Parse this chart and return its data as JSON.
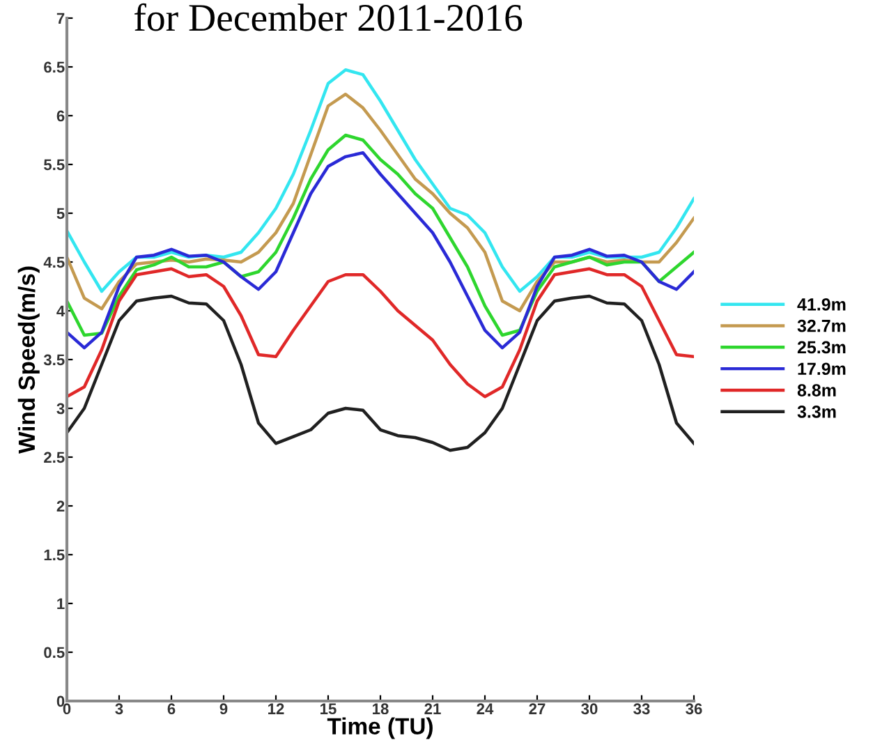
{
  "chart_data": {
    "type": "line",
    "title": "for December 2011-2016",
    "xlabel": "Time (TU)",
    "ylabel": "Wind Speed(m/s)",
    "x": [
      0,
      1,
      2,
      3,
      4,
      5,
      6,
      7,
      8,
      9,
      10,
      11,
      12,
      13,
      14,
      15,
      16,
      17,
      18,
      19,
      20,
      21,
      22,
      23,
      24,
      25,
      26,
      27,
      28,
      29,
      30,
      31,
      32,
      33,
      34,
      35,
      36
    ],
    "xlim": [
      0,
      36
    ],
    "xticks": [
      0,
      3,
      6,
      9,
      12,
      15,
      18,
      21,
      24,
      27,
      30,
      33,
      36
    ],
    "ylim": [
      0,
      7
    ],
    "yticks": [
      0,
      0.5,
      1,
      1.5,
      2,
      2.5,
      3,
      3.5,
      4,
      4.5,
      5,
      5.5,
      6,
      6.5,
      7
    ],
    "grid": false,
    "legend": "right",
    "marker": "none",
    "line_style": "solid",
    "series": [
      {
        "name": "41.9m",
        "color": "#33e6f0",
        "values": [
          4.82,
          4.5,
          4.2,
          4.4,
          4.55,
          4.55,
          4.6,
          4.55,
          4.57,
          4.55,
          4.6,
          4.8,
          5.05,
          5.4,
          5.85,
          6.33,
          6.47,
          6.42,
          6.15,
          5.85,
          5.55,
          5.3,
          5.05,
          4.98,
          4.8,
          4.45,
          4.2,
          4.35,
          4.55,
          4.55,
          4.6,
          4.55,
          4.55,
          4.55,
          4.6,
          4.85,
          5.15
        ]
      },
      {
        "name": "32.7m",
        "color": "#c49a50",
        "values": [
          4.55,
          4.13,
          4.02,
          4.3,
          4.48,
          4.5,
          4.52,
          4.5,
          4.53,
          4.52,
          4.5,
          4.6,
          4.8,
          5.1,
          5.6,
          6.1,
          6.22,
          6.08,
          5.85,
          5.6,
          5.35,
          5.2,
          5.0,
          4.85,
          4.6,
          4.1,
          4.0,
          4.3,
          4.5,
          4.5,
          4.55,
          4.5,
          4.52,
          4.5,
          4.5,
          4.7,
          4.95
        ]
      },
      {
        "name": "25.3m",
        "color": "#2ed62e",
        "values": [
          4.1,
          3.75,
          3.77,
          4.15,
          4.42,
          4.47,
          4.55,
          4.45,
          4.45,
          4.5,
          4.35,
          4.4,
          4.6,
          4.95,
          5.35,
          5.65,
          5.8,
          5.75,
          5.55,
          5.4,
          5.2,
          5.05,
          4.75,
          4.45,
          4.05,
          3.75,
          3.8,
          4.2,
          4.45,
          4.5,
          4.55,
          4.47,
          4.5,
          4.5,
          4.3,
          4.45,
          4.6
        ]
      },
      {
        "name": "17.9m",
        "color": "#2a2ad6",
        "values": [
          3.78,
          3.62,
          3.78,
          4.25,
          4.55,
          4.57,
          4.63,
          4.56,
          4.57,
          4.5,
          4.35,
          4.22,
          4.4,
          4.8,
          5.2,
          5.48,
          5.58,
          5.62,
          5.4,
          5.2,
          5.0,
          4.8,
          4.5,
          4.15,
          3.8,
          3.62,
          3.78,
          4.25,
          4.55,
          4.57,
          4.63,
          4.56,
          4.57,
          4.5,
          4.3,
          4.22,
          4.4
        ]
      },
      {
        "name": "8.8m",
        "color": "#e02828",
        "values": [
          3.12,
          3.22,
          3.6,
          4.1,
          4.37,
          4.4,
          4.43,
          4.35,
          4.37,
          4.25,
          3.95,
          3.55,
          3.53,
          3.8,
          4.05,
          4.3,
          4.37,
          4.37,
          4.2,
          4.0,
          3.85,
          3.7,
          3.45,
          3.25,
          3.12,
          3.22,
          3.6,
          4.1,
          4.37,
          4.4,
          4.43,
          4.37,
          4.37,
          4.25,
          3.9,
          3.55,
          3.53
        ]
      },
      {
        "name": "3.3m",
        "color": "#202020",
        "values": [
          2.75,
          3.0,
          3.45,
          3.9,
          4.1,
          4.13,
          4.15,
          4.08,
          4.07,
          3.9,
          3.45,
          2.85,
          2.64,
          2.71,
          2.78,
          2.95,
          3.0,
          2.98,
          2.78,
          2.72,
          2.7,
          2.65,
          2.57,
          2.6,
          2.75,
          3.0,
          3.45,
          3.9,
          4.1,
          4.13,
          4.15,
          4.08,
          4.07,
          3.9,
          3.45,
          2.85,
          2.64
        ]
      }
    ]
  }
}
